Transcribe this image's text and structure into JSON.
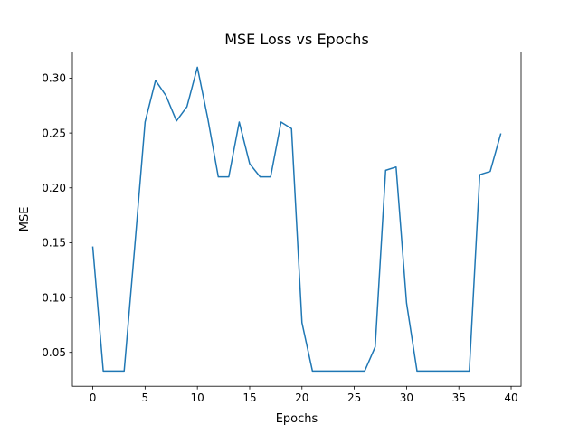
{
  "chart_data": {
    "type": "line",
    "title": "MSE Loss vs Epochs",
    "xlabel": "Epochs",
    "ylabel": "MSE",
    "xlim": [
      -1.95,
      40.95
    ],
    "ylim": [
      0.0191,
      0.3238
    ],
    "xticks": [
      0,
      5,
      10,
      15,
      20,
      25,
      30,
      35,
      40
    ],
    "yticks": [
      0.05,
      0.1,
      0.15,
      0.2,
      0.25,
      0.3
    ],
    "xtick_labels": [
      "0",
      "5",
      "10",
      "15",
      "20",
      "25",
      "30",
      "35",
      "40"
    ],
    "ytick_labels": [
      "0.05",
      "0.10",
      "0.15",
      "0.20",
      "0.25",
      "0.30"
    ],
    "grid": false,
    "series": [
      {
        "color": "#1f77b4",
        "x": [
          0,
          1,
          2,
          3,
          4,
          5,
          6,
          7,
          8,
          9,
          10,
          11,
          12,
          13,
          14,
          15,
          16,
          17,
          18,
          19,
          20,
          21,
          22,
          23,
          24,
          25,
          26,
          27,
          28,
          29,
          30,
          31,
          32,
          33,
          34,
          35,
          36,
          37,
          38,
          39
        ],
        "values": [
          0.146,
          0.033,
          0.033,
          0.033,
          0.145,
          0.26,
          0.298,
          0.284,
          0.261,
          0.274,
          0.31,
          0.263,
          0.21,
          0.21,
          0.26,
          0.222,
          0.21,
          0.21,
          0.26,
          0.254,
          0.077,
          0.033,
          0.033,
          0.033,
          0.033,
          0.033,
          0.033,
          0.055,
          0.216,
          0.219,
          0.095,
          0.033,
          0.033,
          0.033,
          0.033,
          0.033,
          0.033,
          0.212,
          0.215,
          0.249
        ]
      }
    ]
  }
}
